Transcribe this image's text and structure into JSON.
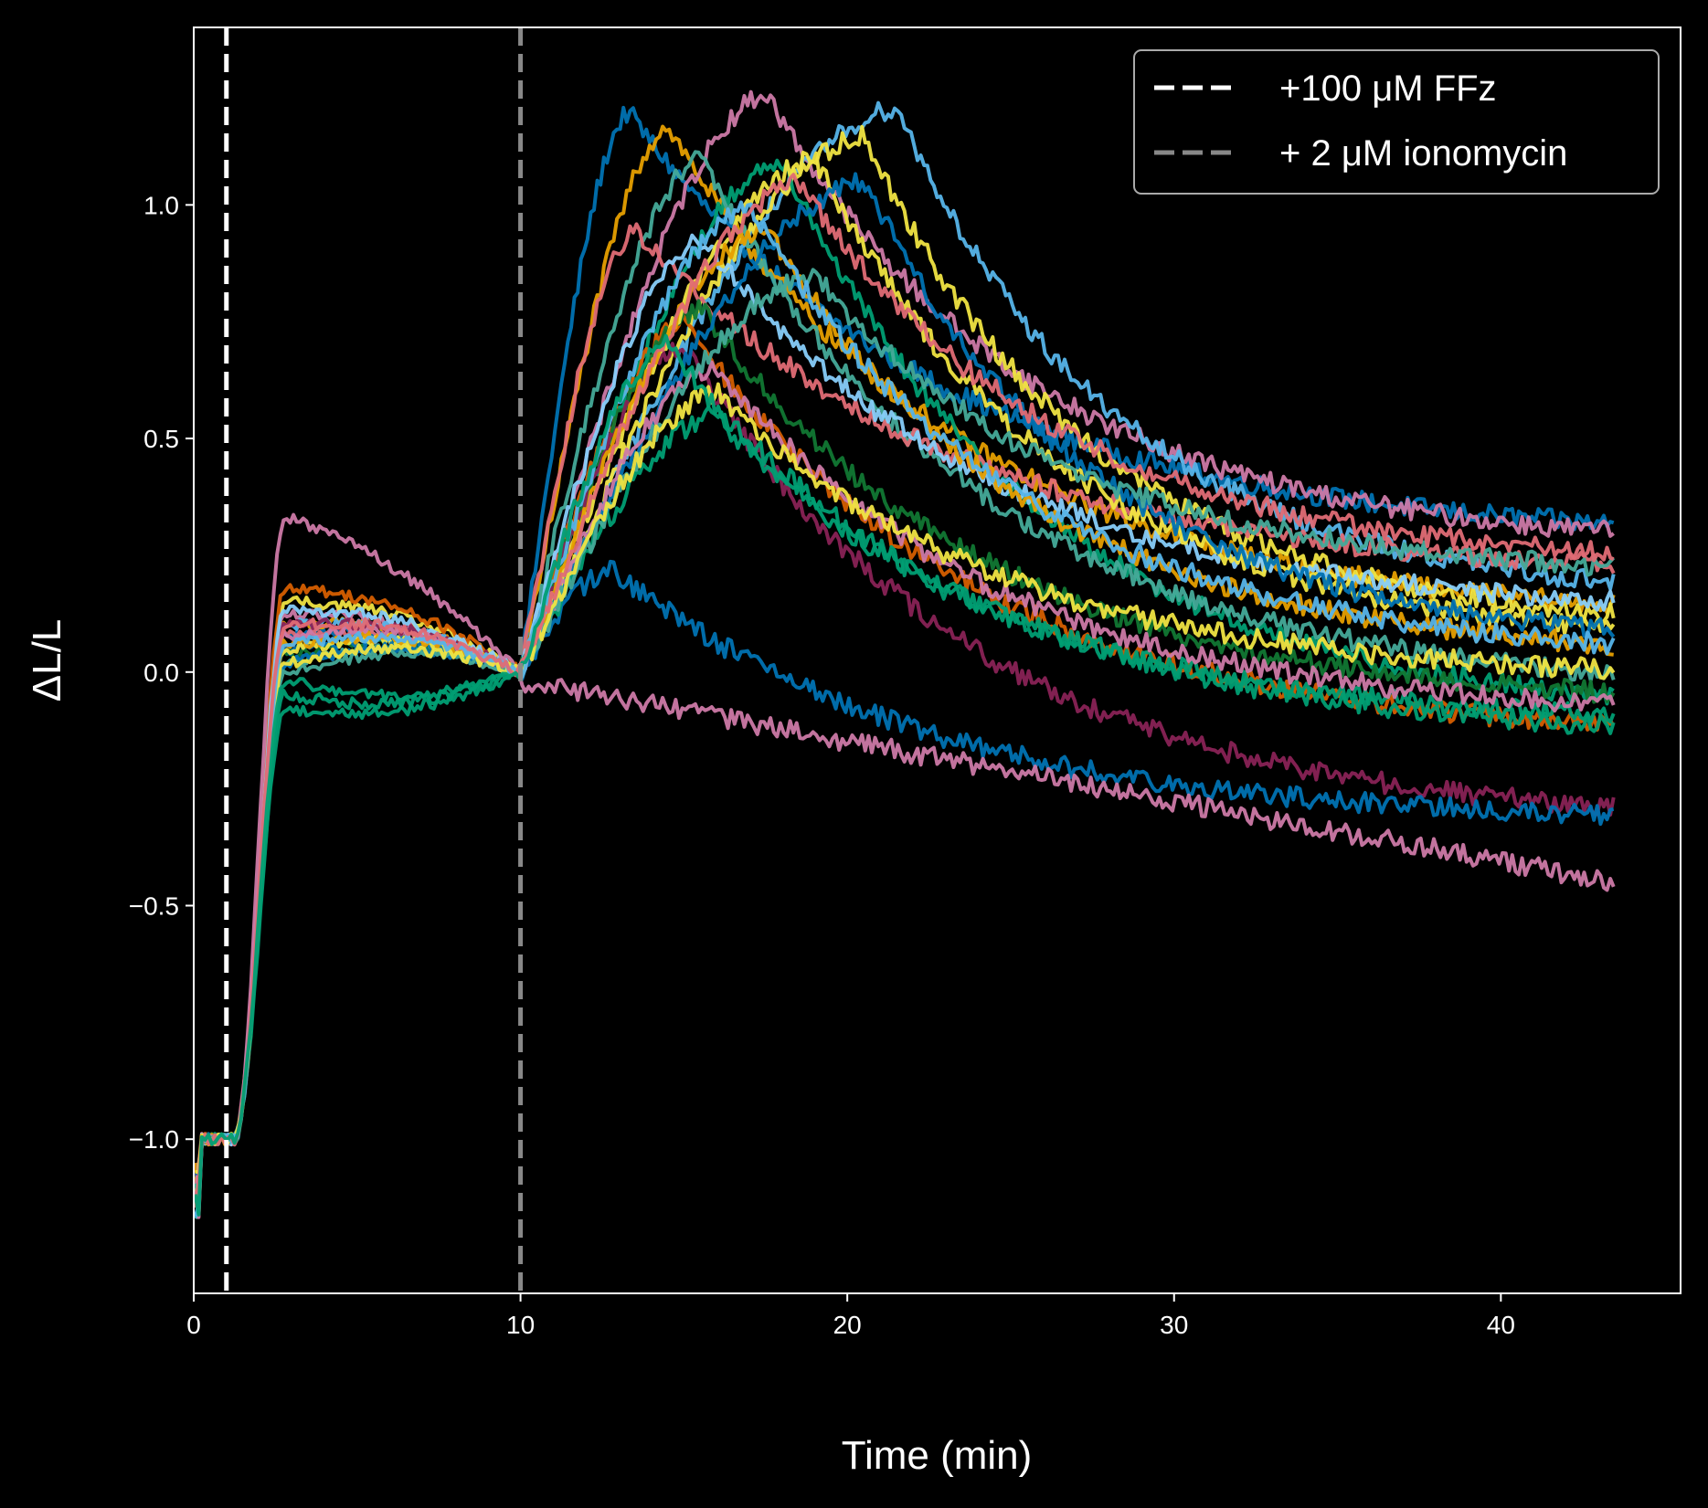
{
  "chart_data": {
    "type": "line",
    "title": "",
    "xlabel": "Time (min)",
    "ylabel": "ΔL/L",
    "xlim": [
      0,
      45.5
    ],
    "ylim": [
      -1.33,
      1.38
    ],
    "x_ticks": [
      0,
      10,
      20,
      30,
      40
    ],
    "y_ticks": [
      -1.0,
      -0.5,
      0.0,
      0.5,
      1.0
    ],
    "x_tick_labels": [
      "0",
      "10",
      "20",
      "30",
      "40"
    ],
    "y_tick_labels": [
      "−1.0",
      "−0.5",
      "0.0",
      "0.5",
      "1.0"
    ],
    "grid": false,
    "legend_position": "top-right",
    "background": "#000000",
    "annotations": [
      {
        "type": "vline",
        "x": 1.0,
        "color": "#ffffff",
        "style": "dashed",
        "label": "+100 μM FFz"
      },
      {
        "type": "vline",
        "x": 10.0,
        "color": "#888888",
        "style": "dashed",
        "label": "+ 2 μM ionomycin"
      }
    ],
    "traces": [
      {
        "color": "#0072b2",
        "phase1": 0.08,
        "peak_t": 13.3,
        "peak": 1.2,
        "end": 0.28
      },
      {
        "color": "#e69f00",
        "phase1": 0.1,
        "peak_t": 14.5,
        "peak": 1.17,
        "end": 0.1
      },
      {
        "color": "#cc79a7",
        "phase1": 0.12,
        "peak_t": 17.5,
        "peak": 1.24,
        "end": 0.26
      },
      {
        "color": "#56b4e9",
        "phase1": 0.1,
        "peak_t": 21.5,
        "peak": 1.21,
        "end": 0.15
      },
      {
        "color": "#f0e442",
        "phase1": 0.15,
        "peak_t": 20.5,
        "peak": 1.15,
        "end": 0.08
      },
      {
        "color": "#009e73",
        "phase1": -0.08,
        "peak_t": 18.0,
        "peak": 1.1,
        "end": -0.1
      },
      {
        "color": "#44aa99",
        "phase1": 0.02,
        "peak_t": 15.5,
        "peak": 1.1,
        "end": -0.05
      },
      {
        "color": "#d55e00",
        "phase1": 0.18,
        "peak_t": 15.0,
        "peak": 0.75,
        "end": -0.15
      },
      {
        "color": "#e06c75",
        "phase1": 0.08,
        "peak_t": 13.5,
        "peak": 0.95,
        "end": 0.2
      },
      {
        "color": "#117733",
        "phase1": 0.04,
        "peak_t": 15.5,
        "peak": 0.78,
        "end": -0.08
      },
      {
        "color": "#882255",
        "phase1": 0.1,
        "peak_t": 15.0,
        "peak": 0.7,
        "end": -0.33
      },
      {
        "color": "#87cefa",
        "phase1": 0.13,
        "peak_t": 15.5,
        "peak": 0.93,
        "end": 0.12
      },
      {
        "color": "#0072b2",
        "phase1": 0.05,
        "peak_t": 12.8,
        "peak": 0.22,
        "end": -0.33
      },
      {
        "color": "#cc79a7",
        "phase1": 0.33,
        "peak_t": 10.0,
        "peak": -0.02,
        "end": -0.45
      },
      {
        "color": "#f0e442",
        "phase1": 0.05,
        "peak_t": 19.0,
        "peak": 1.1,
        "end": 0.05
      },
      {
        "color": "#0072b2",
        "phase1": 0.02,
        "peak_t": 20.5,
        "peak": 1.05,
        "end": 0.05
      },
      {
        "color": "#009e73",
        "phase1": -0.05,
        "peak_t": 16.0,
        "peak": 0.55,
        "end": -0.12
      },
      {
        "color": "#e69f00",
        "phase1": 0.06,
        "peak_t": 17.5,
        "peak": 0.95,
        "end": 0.02
      },
      {
        "color": "#cc79a7",
        "phase1": 0.08,
        "peak_t": 16.0,
        "peak": 0.65,
        "end": -0.1
      },
      {
        "color": "#44aa99",
        "phase1": 0.0,
        "peak_t": 19.0,
        "peak": 0.85,
        "end": 0.2
      },
      {
        "color": "#f0e442",
        "phase1": 0.02,
        "peak_t": 16.0,
        "peak": 0.6,
        "end": -0.02
      },
      {
        "color": "#56b4e9",
        "phase1": 0.06,
        "peak_t": 17.0,
        "peak": 1.0,
        "end": 0.02
      },
      {
        "color": "#e06c75",
        "phase1": 0.1,
        "peak_t": 18.5,
        "peak": 1.05,
        "end": 0.22
      },
      {
        "color": "#009e73",
        "phase1": -0.02,
        "peak_t": 14.5,
        "peak": 0.7,
        "end": -0.15
      }
    ]
  },
  "legend": {
    "items": [
      {
        "label": "+100 μM FFz",
        "color": "#ffffff"
      },
      {
        "label": "+ 2 μM ionomycin",
        "color": "#888888"
      }
    ]
  }
}
